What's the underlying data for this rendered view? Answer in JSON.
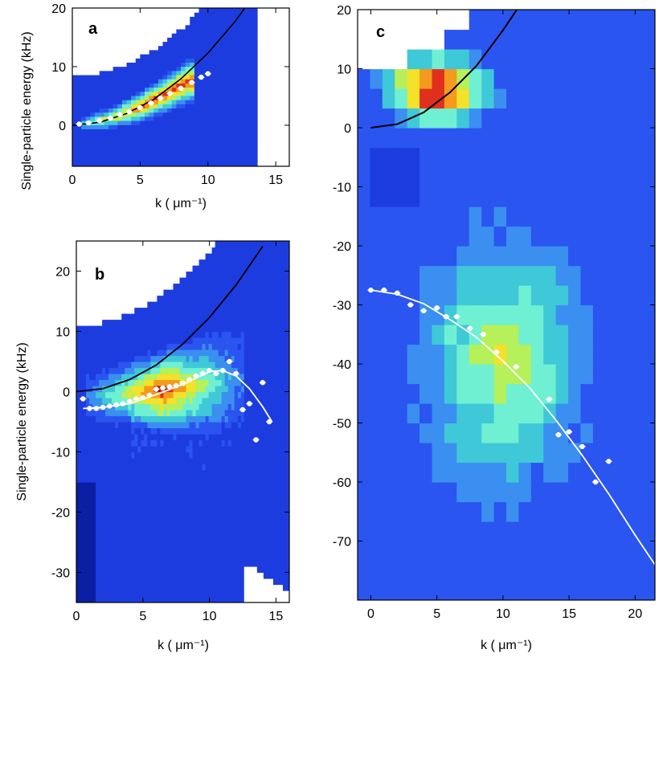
{
  "colors": {
    "background": "#2436e6",
    "colormap": [
      "#0b1fa3",
      "#1d3ce0",
      "#2a55f0",
      "#3a8ff0",
      "#3fc8d8",
      "#6ff0d2",
      "#b6f05a",
      "#f3e12a",
      "#f59a1c",
      "#e0301d",
      "#8a0a0a"
    ],
    "free_particle_curve": "#000000",
    "data_points": "#ffffff"
  },
  "chart_data": [
    {
      "panel": "a",
      "type": "heatmap",
      "panel_label": "a",
      "xlabel": "k ( μm⁻¹)",
      "ylabel": "Single-particle energy (kHz)",
      "xlim": [
        0,
        16
      ],
      "ylim": [
        -7,
        20
      ],
      "xticks": [
        0,
        5,
        10,
        15
      ],
      "yticks": [
        0,
        10,
        20
      ],
      "xtick_labels": [
        "0",
        "5",
        "10",
        "15"
      ],
      "ytick_labels": [
        "0",
        "10",
        "20"
      ],
      "free_particle_curve": {
        "k": [
          0,
          2,
          4,
          6,
          8,
          10,
          12,
          14
        ],
        "energy": [
          0,
          0.5,
          2.0,
          4.4,
          7.9,
          12.3,
          17.7,
          24.1
        ]
      },
      "points": {
        "k": [
          0.5,
          1.2,
          2.0,
          2.8,
          3.5,
          4.2,
          5.0,
          5.8,
          6.5,
          7.2,
          8.0,
          8.8,
          9.5,
          10.0
        ],
        "energy": [
          0.2,
          0.4,
          0.8,
          1.2,
          1.8,
          2.3,
          3.0,
          3.8,
          4.6,
          5.4,
          6.3,
          7.3,
          8.2,
          8.8
        ]
      },
      "intensity_band": {
        "k": [
          1,
          3,
          5,
          7,
          8.5
        ],
        "center": [
          0.3,
          1.4,
          3.1,
          5.5,
          7.5
        ],
        "peak_level": 9
      }
    },
    {
      "panel": "b",
      "type": "heatmap",
      "panel_label": "b",
      "xlabel": "k ( μm⁻¹)",
      "ylabel": "Single-particle energy (kHz)",
      "xlim": [
        0,
        16
      ],
      "ylim": [
        -35,
        25
      ],
      "xticks": [
        0,
        5,
        10,
        15
      ],
      "yticks": [
        -30,
        -20,
        -10,
        0,
        10,
        20
      ],
      "xtick_labels": [
        "0",
        "5",
        "10",
        "15"
      ],
      "ytick_labels": [
        "-30",
        "-20",
        "-10",
        "0",
        "10",
        "20"
      ],
      "free_particle_curve": {
        "k": [
          0,
          2,
          4,
          6,
          8,
          10,
          12,
          14
        ],
        "energy": [
          0,
          0.5,
          2.0,
          4.4,
          7.9,
          12.3,
          17.7,
          24.1
        ]
      },
      "points": {
        "k": [
          0.5,
          1.0,
          1.5,
          2.0,
          2.5,
          3.0,
          3.5,
          4.0,
          4.5,
          5.0,
          5.5,
          6.0,
          6.5,
          7.0,
          7.5,
          8.0,
          8.5,
          9.0,
          9.5,
          10.0,
          10.5,
          11.0,
          11.5,
          12.0,
          12.5,
          13.0,
          13.5,
          14.0,
          14.5
        ],
        "energy": [
          -1.2,
          -2.8,
          -2.8,
          -2.6,
          -2.4,
          -2.2,
          -2.0,
          -1.6,
          -1.2,
          -1.0,
          -0.6,
          0.4,
          0.6,
          0.8,
          1.0,
          1.4,
          2.0,
          2.6,
          3.0,
          3.5,
          3.0,
          3.5,
          5.0,
          3.0,
          -3.0,
          -2.0,
          -8.0,
          1.5,
          -5.0
        ]
      },
      "fit_curve": {
        "k": [
          0.5,
          2,
          4,
          6,
          8,
          10,
          11,
          12,
          13,
          14,
          14.7
        ],
        "energy": [
          -2.8,
          -2.6,
          -2.0,
          -0.5,
          1.2,
          3.3,
          3.5,
          2.6,
          0.5,
          -2.5,
          -5.0
        ]
      },
      "intensity_band": {
        "k": [
          1,
          3,
          5,
          7,
          9,
          11
        ],
        "center": [
          -1,
          -0.5,
          0,
          0.5,
          1.0,
          2.0
        ],
        "peak_level": 10
      }
    },
    {
      "panel": "c",
      "type": "heatmap",
      "panel_label": "c",
      "xlabel": "k ( μm⁻¹)",
      "xlim": [
        -1,
        21.5
      ],
      "ylim": [
        -80,
        20
      ],
      "xticks": [
        0,
        5,
        10,
        15,
        20
      ],
      "yticks": [
        -70,
        -60,
        -50,
        -40,
        -30,
        -20,
        -10,
        0,
        10,
        20
      ],
      "xtick_labels": [
        "0",
        "5",
        "10",
        "15",
        "20"
      ],
      "ytick_labels": [
        "-70",
        "-60",
        "-50",
        "-40",
        "-30",
        "-20",
        "-10",
        "0",
        "10",
        "20"
      ],
      "free_particle_curve": {
        "k": [
          0,
          2,
          4,
          6,
          8,
          10,
          11.5
        ],
        "energy": [
          0,
          0.6,
          2.6,
          6.0,
          10.5,
          16.5,
          21.5
        ]
      },
      "points": {
        "k": [
          0,
          1,
          2,
          3,
          4,
          5,
          5.7,
          6.5,
          7.5,
          8.5,
          9.5,
          11,
          13.5,
          14.2,
          15,
          16,
          17,
          18
        ],
        "energy": [
          -27.5,
          -27.5,
          -28.0,
          -30.0,
          -31.0,
          -30.5,
          -32.0,
          -32.0,
          -34.0,
          -35.0,
          -38.0,
          -40.5,
          -46.0,
          -52.0,
          -51.5,
          -54.0,
          -60.0,
          -56.5
        ]
      },
      "fit_curve": {
        "k": [
          0,
          2,
          4,
          6,
          8,
          10,
          12,
          14,
          16,
          18,
          20,
          21.5
        ],
        "energy": [
          -27.5,
          -28.2,
          -29.8,
          -32.5,
          -35.5,
          -39.5,
          -44.0,
          -49.5,
          -55.5,
          -62.0,
          -69.0,
          -74.0
        ]
      },
      "intensity_blobs": [
        {
          "k_center": 4,
          "e_center": 7,
          "level": 10
        },
        {
          "k_center": 10,
          "e_center": -38,
          "level": 6
        }
      ]
    }
  ]
}
